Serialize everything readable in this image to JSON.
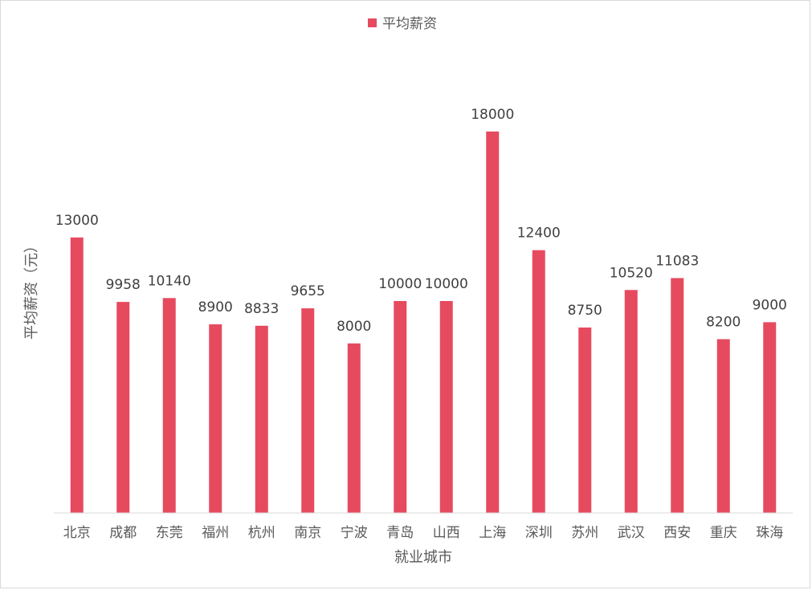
{
  "chart_data": {
    "type": "bar",
    "legend": {
      "position": "top",
      "label": "平均薪资"
    },
    "xlabel": "就业城市",
    "ylabel": "平均薪资（元）",
    "categories": [
      "北京",
      "成都",
      "东莞",
      "福州",
      "杭州",
      "南京",
      "宁波",
      "青岛",
      "山西",
      "上海",
      "深圳",
      "苏州",
      "武汉",
      "西安",
      "重庆",
      "珠海"
    ],
    "series": [
      {
        "name": "平均薪资",
        "values": [
          13000,
          9958,
          10140,
          8900,
          8833,
          9655,
          8000,
          10000,
          10000,
          18000,
          12400,
          8750,
          10520,
          11083,
          8200,
          9000
        ]
      }
    ],
    "ylim": [
      0,
      20000
    ],
    "grid": false,
    "colors": {
      "bar": "#E64A5F",
      "axis": "#d9d9d9"
    }
  }
}
